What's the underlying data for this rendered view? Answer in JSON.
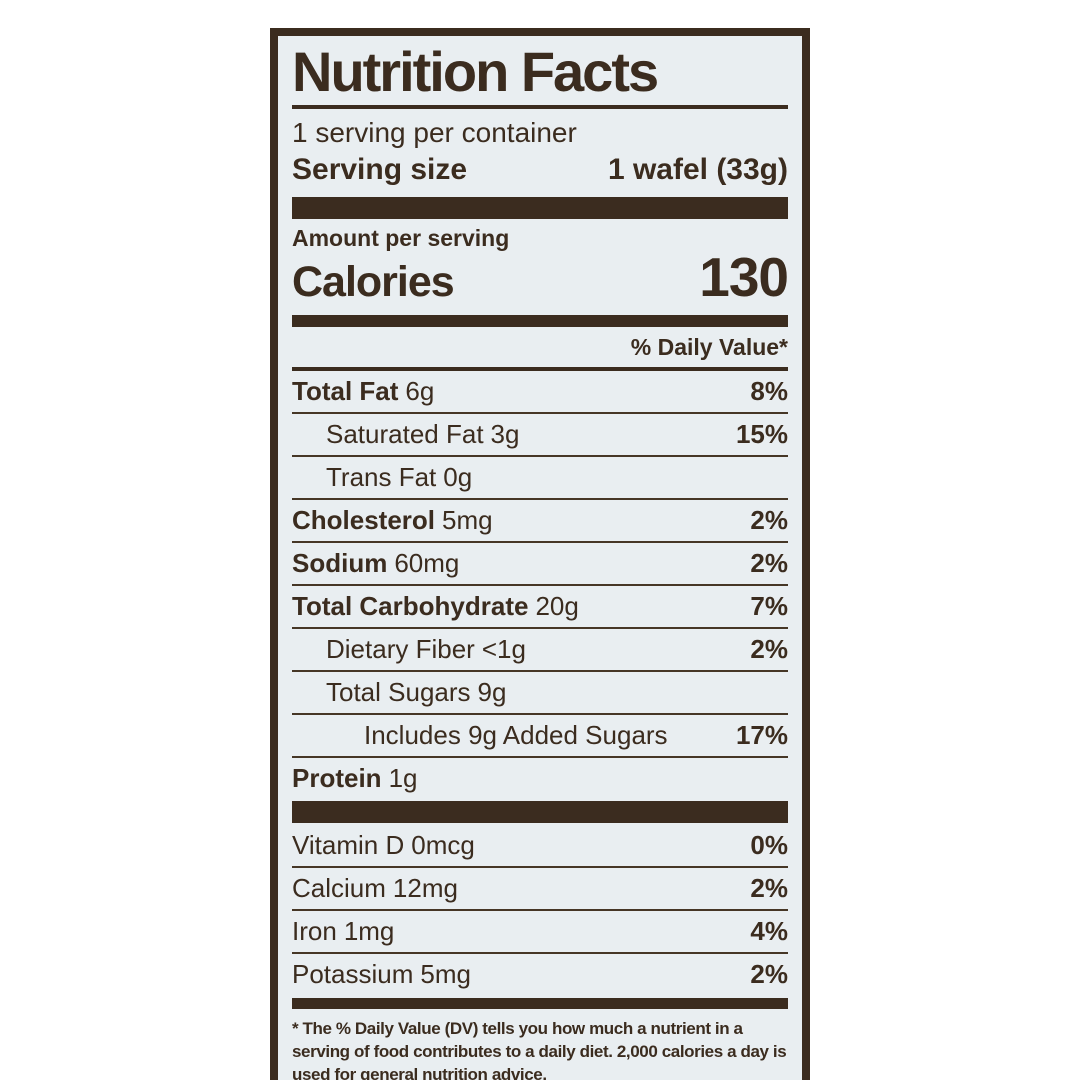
{
  "label": {
    "title": "Nutrition Facts",
    "servings_per_container": "1 serving per container",
    "serving_size_label": "Serving size",
    "serving_size_value": "1 wafel (33g)",
    "amount_per_serving": "Amount per serving",
    "calories_label": "Calories",
    "calories_value": "130",
    "daily_value_header": "% Daily Value*",
    "rows": [
      {
        "name": "Total Fat",
        "amount": "6g",
        "dv": "8%"
      },
      {
        "name": "Saturated Fat",
        "amount": "3g",
        "dv": "15%"
      },
      {
        "name": "Trans Fat",
        "amount": "0g",
        "dv": ""
      },
      {
        "name": "Cholesterol",
        "amount": "5mg",
        "dv": "2%"
      },
      {
        "name": "Sodium",
        "amount": "60mg",
        "dv": "2%"
      },
      {
        "name": "Total Carbohydrate",
        "amount": "20g",
        "dv": "7%"
      },
      {
        "name": "Dietary Fiber",
        "amount": "<1g",
        "dv": "2%"
      },
      {
        "name": "Total Sugars",
        "amount": "9g",
        "dv": ""
      },
      {
        "name": "Includes 9g Added Sugars",
        "amount": "",
        "dv": "17%"
      },
      {
        "name": "Protein",
        "amount": "1g",
        "dv": ""
      }
    ],
    "vitamins": [
      {
        "name": "Vitamin D",
        "amount": "0mcg",
        "dv": "0%"
      },
      {
        "name": "Calcium",
        "amount": "12mg",
        "dv": "2%"
      },
      {
        "name": "Iron",
        "amount": "1mg",
        "dv": "4%"
      },
      {
        "name": "Potassium",
        "amount": "5mg",
        "dv": "2%"
      }
    ],
    "footnote": "* The % Daily Value (DV) tells you how much a nutrient in a serving of food contributes to a daily diet. 2,000 calories a day is used for general nutrition advice."
  },
  "colors": {
    "ink": "#3b2c1f",
    "panel_background": "#e9eef1",
    "page_background": "#ffffff"
  }
}
